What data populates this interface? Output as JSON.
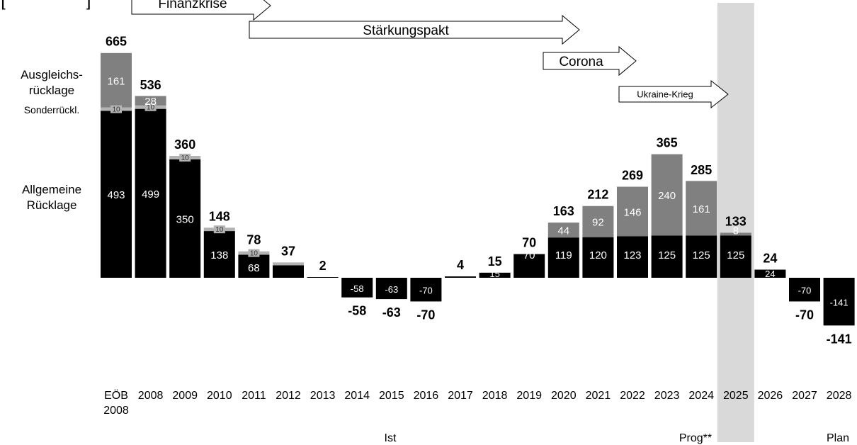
{
  "corner_mark": "[",
  "corner_mark_2": "]",
  "chart_data": {
    "type": "bar",
    "stacked": true,
    "categories": [
      "EÖB 2008",
      "2008",
      "2009",
      "2010",
      "2011",
      "2012",
      "2013",
      "2014",
      "2015",
      "2016",
      "2017",
      "2018",
      "2019",
      "2020",
      "2021",
      "2022",
      "2023",
      "2024",
      "2025",
      "2026",
      "2027",
      "2028"
    ],
    "category_lines": [
      [
        "EÖB",
        "2008"
      ],
      [
        "2008"
      ],
      [
        "2009"
      ],
      [
        "2010"
      ],
      [
        "2011"
      ],
      [
        "2012"
      ],
      [
        "2013"
      ],
      [
        "2014"
      ],
      [
        "2015"
      ],
      [
        "2016"
      ],
      [
        "2017"
      ],
      [
        "2018"
      ],
      [
        "2019"
      ],
      [
        "2020"
      ],
      [
        "2021"
      ],
      [
        "2022"
      ],
      [
        "2023"
      ],
      [
        "2024"
      ],
      [
        "2025"
      ],
      [
        "2026"
      ],
      [
        "2027"
      ],
      [
        "2028"
      ]
    ],
    "series": [
      {
        "name": "Allgemeine Rücklage",
        "values": [
          493,
          499,
          350,
          138,
          68,
          37,
          2,
          -58,
          -63,
          -70,
          4,
          15,
          70,
          119,
          120,
          123,
          125,
          125,
          125,
          24,
          -70,
          -141
        ],
        "labels": [
          "493",
          "499",
          "350",
          "138",
          "68",
          "",
          "",
          "-58",
          "-63",
          "-70",
          "",
          "15",
          "70",
          "119",
          "120",
          "123",
          "125",
          "125",
          "125",
          "24",
          "-70",
          "-141"
        ]
      },
      {
        "name": "Sonderrückl.",
        "values": [
          10,
          10,
          10,
          10,
          10,
          0,
          0,
          0,
          0,
          0,
          0,
          0,
          0,
          0,
          0,
          0,
          0,
          0,
          0,
          0,
          0,
          0
        ],
        "labels": [
          "10",
          "10",
          "10",
          "10",
          "10",
          "",
          "",
          "",
          "",
          "",
          "",
          "",
          "",
          "",
          "",
          "",
          "",
          "",
          "",
          "",
          "",
          ""
        ]
      },
      {
        "name": "Ausgleichsrücklage",
        "values": [
          161,
          28,
          0,
          0,
          0,
          0,
          0,
          0,
          0,
          0,
          0,
          0,
          0,
          44,
          92,
          146,
          240,
          161,
          8,
          0,
          0,
          0
        ],
        "labels": [
          "161",
          "28",
          "",
          "",
          "",
          "",
          "",
          "",
          "",
          "",
          "",
          "",
          "",
          "44",
          "92",
          "146",
          "240",
          "161",
          "8",
          "",
          "",
          ""
        ]
      }
    ],
    "totals": [
      665,
      536,
      360,
      148,
      78,
      37,
      2,
      -58,
      -63,
      -70,
      4,
      15,
      70,
      163,
      212,
      269,
      365,
      285,
      133,
      24,
      -70,
      -141
    ],
    "total_labels": [
      "665",
      "536",
      "360",
      "148",
      "78",
      "37",
      "2",
      "-58",
      "-63",
      "-70",
      "4",
      "15",
      "70",
      "163",
      "212",
      "269",
      "365",
      "285",
      "133",
      "24",
      "-70",
      "-141"
    ],
    "series_labels": [
      {
        "lines": [
          "Ausgleichs-",
          "rücklage"
        ]
      },
      {
        "lines": [
          "Sonderrückl."
        ]
      },
      {
        "lines": [
          "Allgemeine",
          "Rücklage"
        ]
      }
    ],
    "highlight_category": "2025",
    "periods": [
      {
        "label": "Ist",
        "from": "2008",
        "to": "2024"
      },
      {
        "label": "Prog**",
        "from": "2025",
        "to": "2025"
      },
      {
        "label": "Plan",
        "from": "2026",
        "to": "2028"
      }
    ],
    "phases": [
      {
        "label": "Finanzkrise",
        "from": "2008",
        "to": "2011"
      },
      {
        "label": "Stärkungspakt",
        "from": "2012",
        "to": "2021"
      },
      {
        "label": "Corona",
        "from": "2020",
        "to": "2022"
      },
      {
        "label": "Ukraine-Krieg",
        "from": "2023",
        "to": "2025"
      }
    ],
    "colors": {
      "allgemeine": "#000000",
      "sonder": "#b3b3b3",
      "ausgleich": "#808080",
      "highlight": "#d9d9d9",
      "label_on_dark": "#ffffff",
      "label_on_sonder": "#333333"
    }
  }
}
